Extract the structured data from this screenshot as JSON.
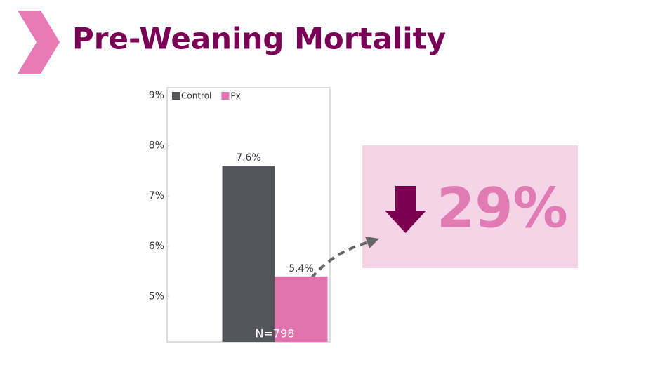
{
  "chart_data": {
    "type": "bar",
    "title": "Pre-Weaning Mortality",
    "categories": [
      null
    ],
    "series": [
      {
        "name": "Control",
        "color": "#545559",
        "values": [
          7.6
        ],
        "value_labels": [
          "7.6%"
        ]
      },
      {
        "name": "Px",
        "color": "#e273af",
        "values": [
          5.4
        ],
        "value_labels": [
          "5.4%"
        ]
      }
    ],
    "ylim": [
      4.1,
      9.15
    ],
    "yticks": [
      {
        "value": 5,
        "label": "5%"
      },
      {
        "value": 6,
        "label": "6%"
      },
      {
        "value": 7,
        "label": "7%"
      },
      {
        "value": 8,
        "label": "8%"
      },
      {
        "value": 9,
        "label": "9%"
      }
    ],
    "legend": "top-left",
    "annotation": "N=798",
    "callout": "29%"
  }
}
